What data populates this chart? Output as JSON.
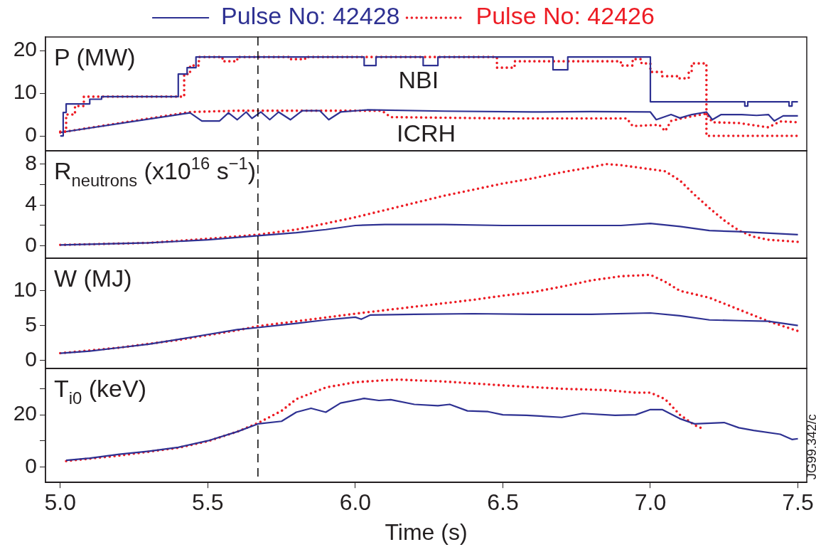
{
  "chart_data": [
    {
      "type": "line",
      "ylabel": "P (MW)",
      "xlim": [
        4.95,
        7.53
      ],
      "ylim": [
        -3.5,
        23.2
      ],
      "yticks": [
        0,
        10,
        20
      ],
      "tick_labels": "y",
      "legend": "top",
      "grid": false,
      "annotations": [
        "NBI",
        "ICRH"
      ],
      "ref_lines": [
        {
          "axis": "x",
          "value": 5.67,
          "color": "#000000",
          "line_style": "dashed"
        }
      ],
      "series": [
        {
          "name": "Pulse No: 42428",
          "type": "step",
          "color": "#2e3192",
          "line_style": "solid",
          "x": [
            5.0,
            5.01,
            5.02,
            5.1,
            5.14,
            5.4,
            5.43,
            5.46,
            6.03,
            6.07,
            6.23,
            6.28,
            6.67,
            6.72,
            7.0,
            7.32,
            7.33,
            7.47,
            7.48,
            7.5
          ],
          "values": [
            0,
            5.5,
            7.5,
            8.6,
            9.2,
            14.5,
            16,
            18.5,
            16.5,
            18.5,
            16.5,
            18.5,
            15.5,
            18.5,
            8,
            7,
            8,
            7,
            8,
            8
          ]
        },
        {
          "name": "Pulse No: 42426",
          "type": "step",
          "color": "#ed1c24",
          "line_style": "dotted",
          "x": [
            5.0,
            5.02,
            5.05,
            5.08,
            5.4,
            5.42,
            5.44,
            5.47,
            5.55,
            5.6,
            5.78,
            5.83,
            6.48,
            6.54,
            6.9,
            6.94,
            6.97,
            7.0,
            7.04,
            7.09,
            7.13,
            7.14,
            7.19,
            7.5
          ],
          "values": [
            1,
            5,
            7,
            9.2,
            9.2,
            14.5,
            16.5,
            18.5,
            17.5,
            18.5,
            18,
            18.5,
            16,
            17.5,
            16.5,
            18,
            17,
            15,
            14,
            13.5,
            15,
            17,
            0,
            0
          ]
        },
        {
          "color": "#2e3192",
          "line_style": "solid",
          "x": [
            5.0,
            5.44,
            5.48,
            5.54,
            5.57,
            5.6,
            5.63,
            5.65,
            5.68,
            5.71,
            5.74,
            5.78,
            5.82,
            5.88,
            5.91,
            5.95,
            6.04,
            6.3,
            6.6,
            6.8,
            7.0,
            7.02,
            7.07,
            7.1,
            7.14,
            7.19,
            7.21,
            7.24,
            7.31,
            7.36,
            7.4,
            7.42,
            7.45,
            7.5
          ],
          "values": [
            0.8,
            5.4,
            3.5,
            3.5,
            5.4,
            3.8,
            5.6,
            4.1,
            5.6,
            3.8,
            5.6,
            3.8,
            5.9,
            5.9,
            3.8,
            5.6,
            6.1,
            5.8,
            5.6,
            5.7,
            5.6,
            3.8,
            5,
            4.2,
            5,
            5.6,
            3.8,
            5,
            5,
            4.8,
            5,
            3.5,
            4.7,
            4.7
          ]
        },
        {
          "color": "#ed1c24",
          "line_style": "dotted",
          "x": [
            5.0,
            5.44,
            5.6,
            6.09,
            6.12,
            6.5,
            6.92,
            6.94,
            7.03,
            7.05,
            7.07,
            7.1,
            7.14,
            7.19,
            7.21,
            7.3,
            7.4,
            7.44,
            7.5
          ],
          "values": [
            0.8,
            5.6,
            5.9,
            5.9,
            4.4,
            4.1,
            4.1,
            2.3,
            2.6,
            1.1,
            3.5,
            4,
            4.6,
            5.2,
            3.2,
            3,
            2,
            3.4,
            3.2
          ]
        }
      ]
    },
    {
      "type": "line",
      "ylabel": "R$_{neutrons}$ (x10$^{16}$ s$^{−1}$)",
      "xlim": [
        4.95,
        7.53
      ],
      "ylim": [
        -1.2,
        9.3
      ],
      "yticks": [
        0,
        {
          "value": 2,
          "label": null
        },
        4,
        {
          "value": 6,
          "label": null
        },
        8
      ],
      "tick_labels": "y",
      "grid": false,
      "ref_lines": [
        {
          "axis": "x",
          "value": 5.67,
          "color": "#000000",
          "line_style": "dashed"
        }
      ],
      "series": [
        {
          "color": "#2e3192",
          "line_style": "solid",
          "x": [
            5.0,
            5.3,
            5.5,
            5.67,
            5.8,
            5.9,
            6.0,
            6.1,
            6.3,
            6.5,
            6.7,
            6.9,
            7.0,
            7.1,
            7.2,
            7.3,
            7.5
          ],
          "values": [
            0.1,
            0.3,
            0.6,
            1.0,
            1.3,
            1.6,
            2.0,
            2.1,
            2.1,
            2.0,
            2.0,
            2.0,
            2.2,
            1.9,
            1.5,
            1.4,
            1.1
          ]
        },
        {
          "color": "#ed1c24",
          "line_style": "dotted",
          "x": [
            5.0,
            5.3,
            5.5,
            5.67,
            5.8,
            5.9,
            6.0,
            6.1,
            6.2,
            6.3,
            6.4,
            6.5,
            6.6,
            6.7,
            6.8,
            6.85,
            6.9,
            7.0,
            7.05,
            7.1,
            7.15,
            7.2,
            7.25,
            7.3,
            7.35,
            7.4,
            7.5
          ],
          "values": [
            0.1,
            0.3,
            0.7,
            1.1,
            1.6,
            2.2,
            2.8,
            3.5,
            4.2,
            4.9,
            5.5,
            6.1,
            6.6,
            7.2,
            7.7,
            8.0,
            7.9,
            7.5,
            7.3,
            6.4,
            5.0,
            3.7,
            2.5,
            1.5,
            0.9,
            0.6,
            0.4
          ]
        }
      ]
    },
    {
      "type": "line",
      "ylabel": "W (MJ)",
      "xlim": [
        4.95,
        7.53
      ],
      "ylim": [
        -1.2,
        14.7
      ],
      "yticks": [
        0,
        5,
        10
      ],
      "tick_labels": "y",
      "grid": false,
      "ref_lines": [
        {
          "axis": "x",
          "value": 5.67,
          "color": "#000000",
          "line_style": "dashed"
        }
      ],
      "series": [
        {
          "color": "#2e3192",
          "line_style": "solid",
          "x": [
            5.0,
            5.1,
            5.2,
            5.3,
            5.4,
            5.5,
            5.6,
            5.67,
            5.8,
            5.9,
            6.0,
            6.02,
            6.05,
            6.2,
            6.4,
            6.6,
            6.8,
            7.0,
            7.1,
            7.2,
            7.3,
            7.4,
            7.5
          ],
          "values": [
            1.0,
            1.3,
            1.8,
            2.3,
            3.0,
            3.7,
            4.4,
            4.7,
            5.3,
            5.8,
            6.2,
            5.9,
            6.5,
            6.6,
            6.7,
            6.6,
            6.6,
            6.8,
            6.4,
            5.8,
            5.7,
            5.6,
            5.0
          ]
        },
        {
          "color": "#ed1c24",
          "line_style": "dotted",
          "x": [
            5.0,
            5.2,
            5.4,
            5.6,
            5.67,
            5.8,
            6.0,
            6.2,
            6.4,
            6.5,
            6.6,
            6.7,
            6.8,
            6.9,
            7.0,
            7.05,
            7.1,
            7.2,
            7.3,
            7.4,
            7.5
          ],
          "values": [
            1.0,
            1.8,
            2.9,
            4.3,
            4.9,
            5.6,
            6.7,
            7.7,
            8.7,
            9.3,
            9.8,
            10.6,
            11.5,
            12.1,
            12.3,
            11.3,
            10.0,
            9.0,
            7.3,
            5.6,
            4.2
          ]
        }
      ]
    },
    {
      "type": "line",
      "ylabel": "T$_{i0}$ (keV)",
      "xlabel": "Time (s)",
      "xlim": [
        4.95,
        7.53
      ],
      "xticks": [
        {
          "value": 5,
          "label": "5.0"
        },
        5.5,
        {
          "value": 6,
          "label": "6.0"
        },
        6.5,
        {
          "value": 7,
          "label": "7.0"
        },
        7.5
      ],
      "ylim": [
        -6,
        37.8
      ],
      "yticks": [
        0,
        {
          "value": 10,
          "label": null
        },
        20,
        {
          "value": 30,
          "label": null
        }
      ],
      "grid": false,
      "annotations": [
        "JG99.342/c"
      ],
      "ref_lines": [
        {
          "axis": "x",
          "value": 5.67,
          "color": "#000000",
          "line_style": "dashed"
        }
      ],
      "series": [
        {
          "color": "#2e3192",
          "line_style": "solid",
          "x": [
            5.02,
            5.1,
            5.2,
            5.3,
            5.4,
            5.5,
            5.6,
            5.67,
            5.75,
            5.8,
            5.85,
            5.9,
            5.95,
            6.03,
            6.08,
            6.12,
            6.2,
            6.28,
            6.32,
            6.38,
            6.45,
            6.5,
            6.58,
            6.7,
            6.77,
            6.88,
            6.95,
            7.0,
            7.04,
            7.1,
            7.15,
            7.25,
            7.3,
            7.35,
            7.44,
            7.48,
            7.5
          ],
          "values": [
            2.5,
            3.3,
            4.8,
            6,
            7.5,
            10,
            13.5,
            16.5,
            17.5,
            21,
            22.5,
            21,
            24.5,
            26.3,
            25.5,
            25.8,
            24,
            23.5,
            24,
            21.5,
            21.2,
            20,
            19.8,
            19,
            20.5,
            19.8,
            20,
            22,
            22,
            18.5,
            16.5,
            17,
            15,
            14,
            12.5,
            10.5,
            10.8
          ]
        },
        {
          "color": "#ed1c24",
          "line_style": "dotted",
          "x": [
            5.02,
            5.2,
            5.4,
            5.5,
            5.6,
            5.67,
            5.75,
            5.8,
            5.9,
            6.0,
            6.1,
            6.15,
            6.3,
            6.5,
            6.7,
            6.85,
            6.95,
            7.0,
            7.05,
            7.1,
            7.15,
            7.18
          ],
          "values": [
            2.2,
            4.3,
            7.3,
            9.8,
            13.5,
            16.8,
            21.5,
            26,
            30.5,
            32.5,
            33.3,
            33.5,
            32.8,
            31.3,
            30,
            29.5,
            28.5,
            28.5,
            26,
            20,
            16,
            14.5
          ]
        }
      ]
    }
  ]
}
